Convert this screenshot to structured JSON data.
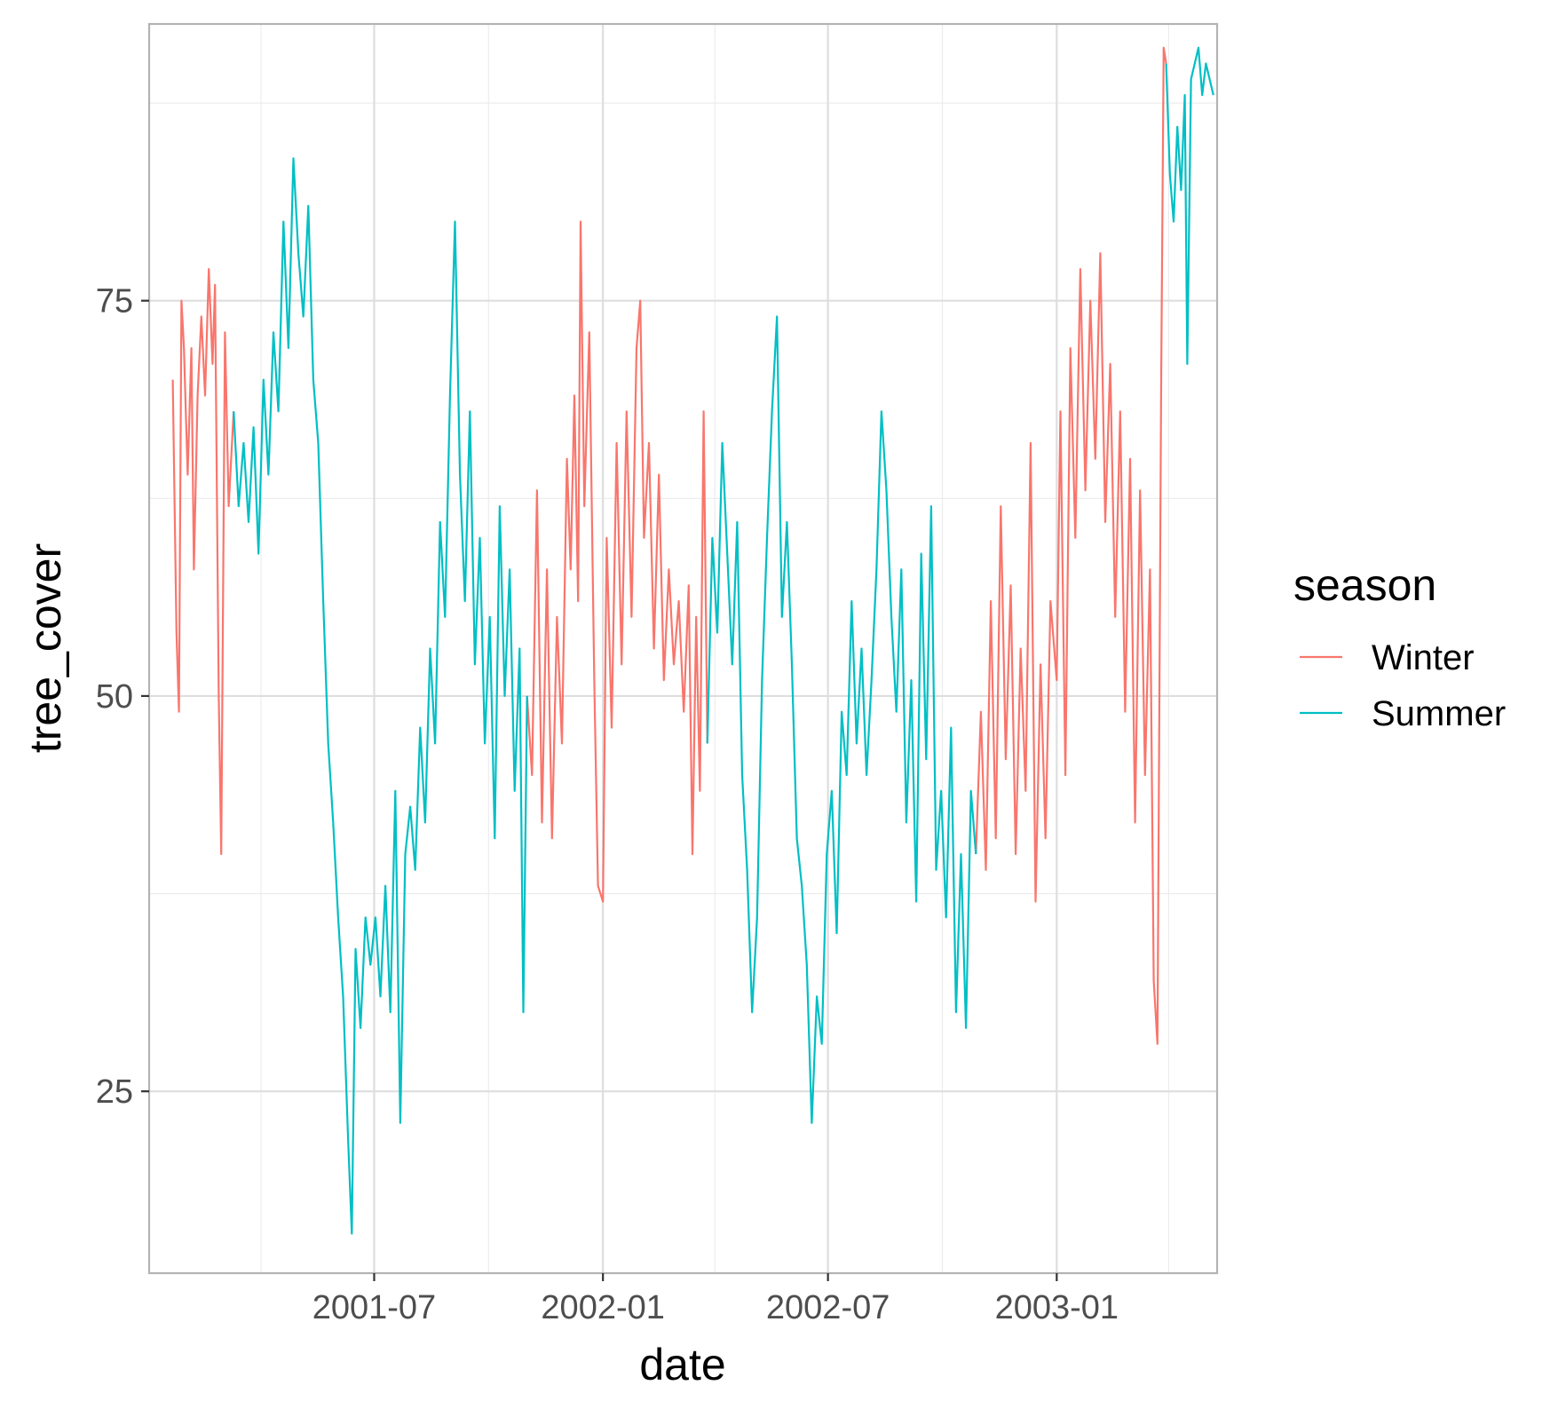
{
  "chart_data": {
    "type": "line",
    "title": "",
    "xlabel": "date",
    "ylabel": "tree_cover",
    "x_ticks": [
      "2001-07",
      "2002-01",
      "2002-07",
      "2003-01"
    ],
    "y_ticks": [
      25,
      50,
      75
    ],
    "xlim": [
      "2001-01-01",
      "2003-05-10"
    ],
    "ylim": [
      13.5,
      92.5
    ],
    "grid": true,
    "legend": {
      "title": "season",
      "position": "right",
      "entries": [
        {
          "name": "Winter",
          "color": "#F8766D"
        },
        {
          "name": "Summer",
          "color": "#00BFC4"
        }
      ]
    },
    "series": [
      {
        "name": "Winter",
        "color": "#F8766D",
        "points": [
          [
            "2001-01-20",
            70
          ],
          [
            "2001-01-23",
            54
          ],
          [
            "2001-01-25",
            49
          ],
          [
            "2001-01-27",
            75
          ],
          [
            "2001-01-29",
            72
          ],
          [
            "2001-02-01",
            64
          ],
          [
            "2001-02-04",
            72
          ],
          [
            "2001-02-06",
            58
          ],
          [
            "2001-02-09",
            69
          ],
          [
            "2001-02-12",
            74
          ],
          [
            "2001-02-15",
            69
          ],
          [
            "2001-02-18",
            77
          ],
          [
            "2001-02-21",
            71
          ],
          [
            "2001-02-23",
            76
          ],
          [
            "2001-02-26",
            50
          ],
          [
            "2001-02-28",
            40
          ],
          [
            "2001-03-03",
            73
          ],
          [
            "2001-03-06",
            62
          ],
          [
            "2001-03-10",
            68
          ],
          [
            "2001-11-01",
            50
          ],
          [
            "2001-11-05",
            45
          ],
          [
            "2001-11-09",
            63
          ],
          [
            "2001-11-13",
            42
          ],
          [
            "2001-11-17",
            58
          ],
          [
            "2001-11-21",
            41
          ],
          [
            "2001-11-25",
            55
          ],
          [
            "2001-11-29",
            47
          ],
          [
            "2001-12-03",
            65
          ],
          [
            "2001-12-06",
            58
          ],
          [
            "2001-12-09",
            69
          ],
          [
            "2001-12-12",
            56
          ],
          [
            "2001-12-14",
            80
          ],
          [
            "2001-12-17",
            62
          ],
          [
            "2001-12-21",
            73
          ],
          [
            "2001-12-25",
            51
          ],
          [
            "2001-12-28",
            38
          ],
          [
            "2002-01-01",
            37
          ],
          [
            "2002-01-04",
            60
          ],
          [
            "2002-01-08",
            48
          ],
          [
            "2002-01-12",
            66
          ],
          [
            "2002-01-16",
            52
          ],
          [
            "2002-01-20",
            68
          ],
          [
            "2002-01-24",
            55
          ],
          [
            "2002-01-28",
            72
          ],
          [
            "2002-01-31",
            75
          ],
          [
            "2002-02-03",
            60
          ],
          [
            "2002-02-07",
            66
          ],
          [
            "2002-02-11",
            53
          ],
          [
            "2002-02-15",
            64
          ],
          [
            "2002-02-19",
            51
          ],
          [
            "2002-02-23",
            58
          ],
          [
            "2002-02-27",
            52
          ],
          [
            "2002-03-03",
            56
          ],
          [
            "2002-03-07",
            49
          ],
          [
            "2002-03-11",
            57
          ],
          [
            "2002-03-14",
            40
          ],
          [
            "2002-03-17",
            55
          ],
          [
            "2002-03-20",
            44
          ],
          [
            "2002-03-23",
            68
          ],
          [
            "2002-03-26",
            47
          ],
          [
            "2002-10-28",
            40
          ],
          [
            "2002-11-01",
            49
          ],
          [
            "2002-11-05",
            39
          ],
          [
            "2002-11-09",
            56
          ],
          [
            "2002-11-13",
            41
          ],
          [
            "2002-11-17",
            62
          ],
          [
            "2002-11-21",
            46
          ],
          [
            "2002-11-25",
            57
          ],
          [
            "2002-11-29",
            40
          ],
          [
            "2002-12-03",
            53
          ],
          [
            "2002-12-07",
            44
          ],
          [
            "2002-12-11",
            66
          ],
          [
            "2002-12-15",
            37
          ],
          [
            "2002-12-19",
            52
          ],
          [
            "2002-12-23",
            41
          ],
          [
            "2002-12-27",
            56
          ],
          [
            "2003-01-01",
            51
          ],
          [
            "2003-01-04",
            68
          ],
          [
            "2003-01-08",
            45
          ],
          [
            "2003-01-12",
            72
          ],
          [
            "2003-01-16",
            60
          ],
          [
            "2003-01-20",
            77
          ],
          [
            "2003-01-24",
            63
          ],
          [
            "2003-01-28",
            75
          ],
          [
            "2003-02-01",
            65
          ],
          [
            "2003-02-05",
            78
          ],
          [
            "2003-02-09",
            61
          ],
          [
            "2003-02-13",
            71
          ],
          [
            "2003-02-17",
            55
          ],
          [
            "2003-02-21",
            68
          ],
          [
            "2003-02-25",
            49
          ],
          [
            "2003-03-01",
            65
          ],
          [
            "2003-03-05",
            42
          ],
          [
            "2003-03-09",
            63
          ],
          [
            "2003-03-13",
            45
          ],
          [
            "2003-03-17",
            58
          ],
          [
            "2003-03-20",
            32
          ],
          [
            "2003-03-23",
            28
          ],
          [
            "2003-03-26",
            70
          ],
          [
            "2003-03-28",
            91
          ],
          [
            "2003-03-30",
            90
          ]
        ]
      },
      {
        "name": "Summer",
        "color": "#00BFC4",
        "points": [
          [
            "2001-03-10",
            68
          ],
          [
            "2001-03-14",
            62
          ],
          [
            "2001-03-18",
            66
          ],
          [
            "2001-03-22",
            61
          ],
          [
            "2001-03-26",
            67
          ],
          [
            "2001-03-30",
            59
          ],
          [
            "2001-04-03",
            70
          ],
          [
            "2001-04-07",
            64
          ],
          [
            "2001-04-11",
            73
          ],
          [
            "2001-04-15",
            68
          ],
          [
            "2001-04-19",
            80
          ],
          [
            "2001-04-23",
            72
          ],
          [
            "2001-04-27",
            84
          ],
          [
            "2001-05-01",
            78
          ],
          [
            "2001-05-05",
            74
          ],
          [
            "2001-05-09",
            81
          ],
          [
            "2001-05-13",
            70
          ],
          [
            "2001-05-17",
            66
          ],
          [
            "2001-05-21",
            56
          ],
          [
            "2001-05-25",
            47
          ],
          [
            "2001-05-29",
            42
          ],
          [
            "2001-06-02",
            36
          ],
          [
            "2001-06-06",
            31
          ],
          [
            "2001-06-10",
            22
          ],
          [
            "2001-06-13",
            16
          ],
          [
            "2001-06-16",
            34
          ],
          [
            "2001-06-20",
            29
          ],
          [
            "2001-06-24",
            36
          ],
          [
            "2001-06-28",
            33
          ],
          [
            "2001-07-02",
            36
          ],
          [
            "2001-07-06",
            31
          ],
          [
            "2001-07-10",
            38
          ],
          [
            "2001-07-14",
            30
          ],
          [
            "2001-07-18",
            44
          ],
          [
            "2001-07-22",
            23
          ],
          [
            "2001-07-26",
            40
          ],
          [
            "2001-07-30",
            43
          ],
          [
            "2001-08-03",
            39
          ],
          [
            "2001-08-07",
            48
          ],
          [
            "2001-08-11",
            42
          ],
          [
            "2001-08-15",
            53
          ],
          [
            "2001-08-19",
            47
          ],
          [
            "2001-08-23",
            61
          ],
          [
            "2001-08-27",
            55
          ],
          [
            "2001-08-31",
            69
          ],
          [
            "2001-09-04",
            80
          ],
          [
            "2001-09-08",
            64
          ],
          [
            "2001-09-12",
            56
          ],
          [
            "2001-09-16",
            68
          ],
          [
            "2001-09-20",
            52
          ],
          [
            "2001-09-24",
            60
          ],
          [
            "2001-09-28",
            47
          ],
          [
            "2001-10-02",
            55
          ],
          [
            "2001-10-06",
            41
          ],
          [
            "2001-10-10",
            62
          ],
          [
            "2001-10-14",
            50
          ],
          [
            "2001-10-18",
            58
          ],
          [
            "2001-10-22",
            44
          ],
          [
            "2001-10-26",
            53
          ],
          [
            "2001-10-29",
            30
          ],
          [
            "2001-11-01",
            50
          ],
          [
            "2002-03-26",
            47
          ],
          [
            "2002-03-30",
            60
          ],
          [
            "2002-04-03",
            54
          ],
          [
            "2002-04-07",
            66
          ],
          [
            "2002-04-11",
            59
          ],
          [
            "2002-04-15",
            52
          ],
          [
            "2002-04-19",
            61
          ],
          [
            "2002-04-23",
            45
          ],
          [
            "2002-04-27",
            39
          ],
          [
            "2002-05-01",
            30
          ],
          [
            "2002-05-05",
            36
          ],
          [
            "2002-05-09",
            51
          ],
          [
            "2002-05-13",
            60
          ],
          [
            "2002-05-17",
            68
          ],
          [
            "2002-05-21",
            74
          ],
          [
            "2002-05-25",
            55
          ],
          [
            "2002-05-29",
            61
          ],
          [
            "2002-06-02",
            52
          ],
          [
            "2002-06-06",
            41
          ],
          [
            "2002-06-10",
            38
          ],
          [
            "2002-06-14",
            33
          ],
          [
            "2002-06-18",
            23
          ],
          [
            "2002-06-22",
            31
          ],
          [
            "2002-06-26",
            28
          ],
          [
            "2002-06-30",
            40
          ],
          [
            "2002-07-04",
            44
          ],
          [
            "2002-07-08",
            35
          ],
          [
            "2002-07-12",
            49
          ],
          [
            "2002-07-16",
            45
          ],
          [
            "2002-07-20",
            56
          ],
          [
            "2002-07-24",
            47
          ],
          [
            "2002-07-28",
            53
          ],
          [
            "2002-08-01",
            45
          ],
          [
            "2002-08-05",
            51
          ],
          [
            "2002-08-09",
            58
          ],
          [
            "2002-08-13",
            68
          ],
          [
            "2002-08-17",
            63
          ],
          [
            "2002-08-21",
            55
          ],
          [
            "2002-08-25",
            49
          ],
          [
            "2002-08-29",
            58
          ],
          [
            "2002-09-02",
            42
          ],
          [
            "2002-09-06",
            51
          ],
          [
            "2002-09-10",
            37
          ],
          [
            "2002-09-14",
            59
          ],
          [
            "2002-09-18",
            46
          ],
          [
            "2002-09-22",
            62
          ],
          [
            "2002-09-26",
            39
          ],
          [
            "2002-09-30",
            44
          ],
          [
            "2002-10-04",
            36
          ],
          [
            "2002-10-08",
            48
          ],
          [
            "2002-10-12",
            30
          ],
          [
            "2002-10-16",
            40
          ],
          [
            "2002-10-20",
            29
          ],
          [
            "2002-10-24",
            44
          ],
          [
            "2002-10-28",
            40
          ],
          [
            "2003-03-30",
            90
          ],
          [
            "2003-04-02",
            83
          ],
          [
            "2003-04-05",
            80
          ],
          [
            "2003-04-08",
            86
          ],
          [
            "2003-04-11",
            82
          ],
          [
            "2003-04-14",
            88
          ],
          [
            "2003-04-16",
            71
          ],
          [
            "2003-04-19",
            89
          ],
          [
            "2003-04-22",
            90
          ],
          [
            "2003-04-25",
            91
          ],
          [
            "2003-04-28",
            88
          ],
          [
            "2003-05-01",
            90
          ],
          [
            "2003-05-04",
            89
          ],
          [
            "2003-05-07",
            88
          ]
        ]
      }
    ]
  }
}
